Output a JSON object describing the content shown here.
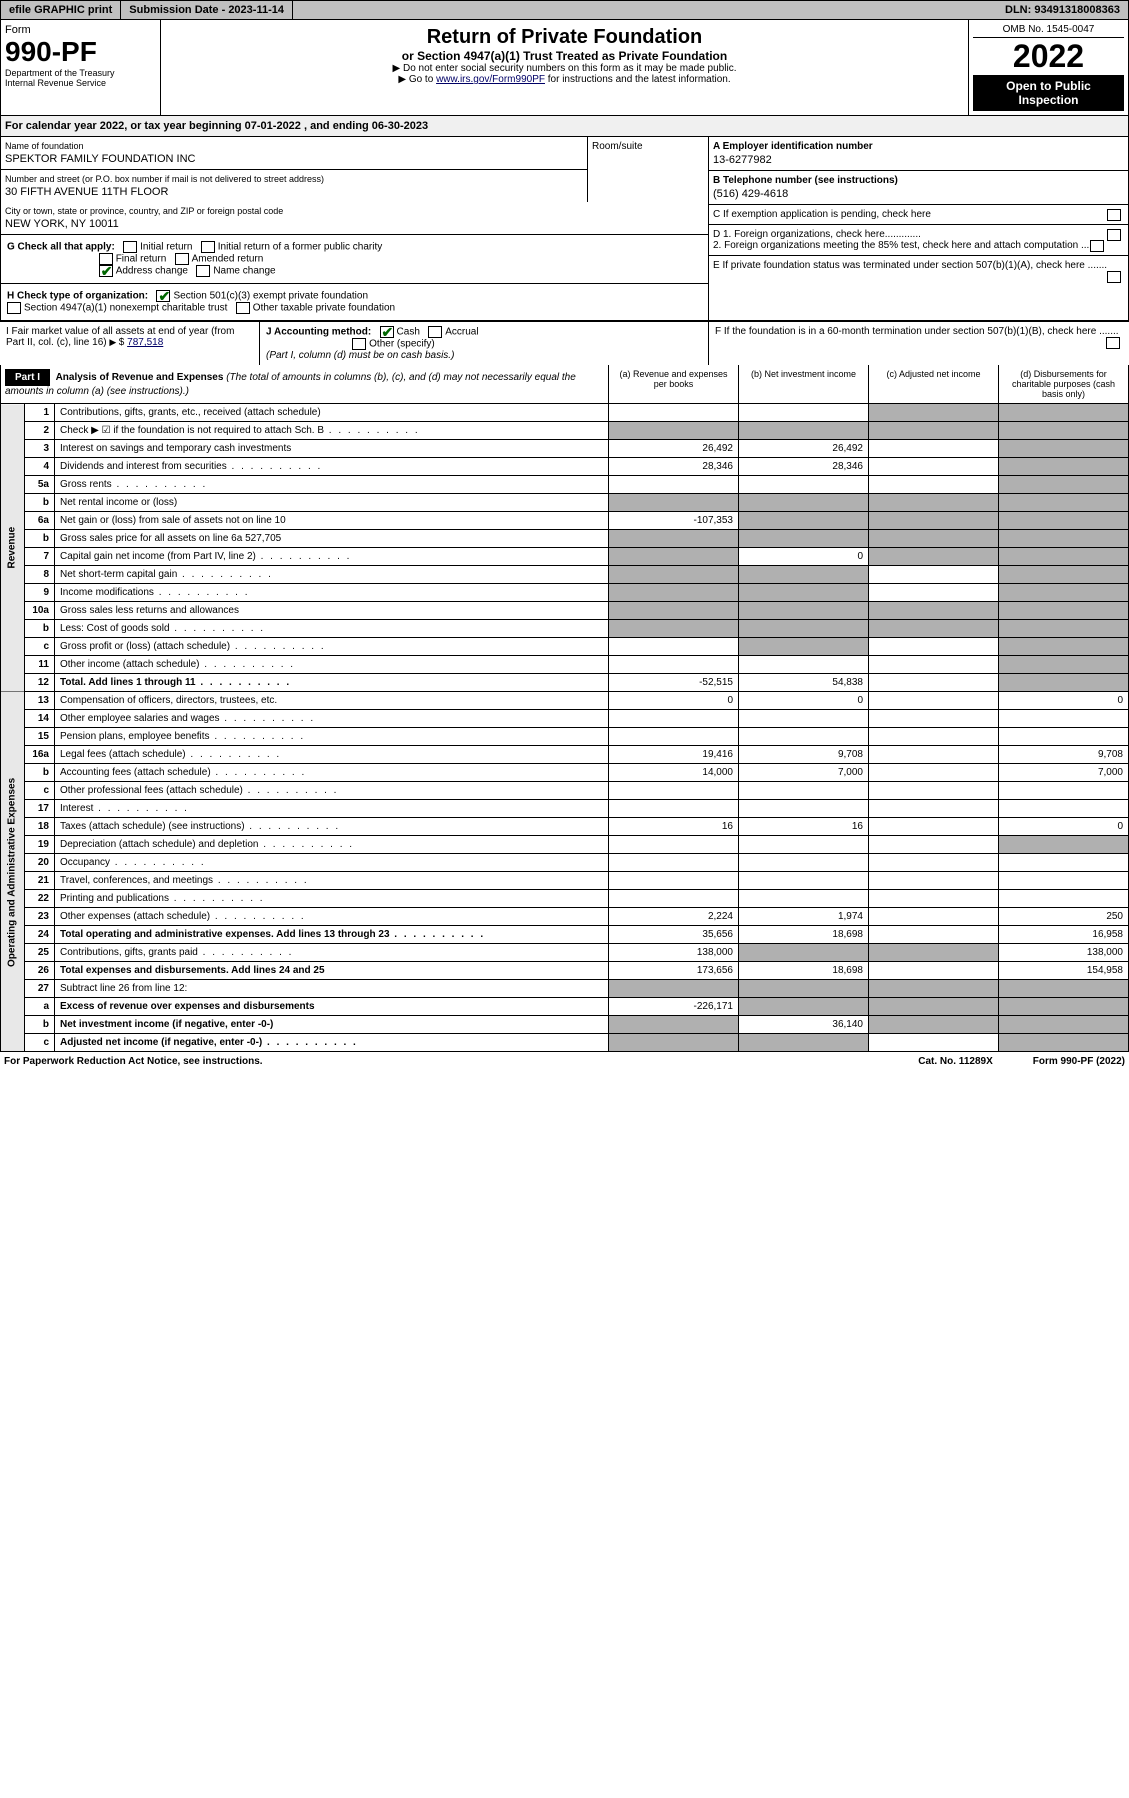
{
  "topbar": {
    "efile": "efile GRAPHIC print",
    "submission": "Submission Date - 2023-11-14",
    "dln": "DLN: 93491318008363"
  },
  "header": {
    "form_label": "Form",
    "form_num": "990-PF",
    "dept1": "Department of the Treasury",
    "dept2": "Internal Revenue Service",
    "title": "Return of Private Foundation",
    "subtitle": "or Section 4947(a)(1) Trust Treated as Private Foundation",
    "note1": "▶ Do not enter social security numbers on this form as it may be made public.",
    "note2_pre": "▶ Go to ",
    "note2_link": "www.irs.gov/Form990PF",
    "note2_post": " for instructions and the latest information.",
    "omb": "OMB No. 1545-0047",
    "year": "2022",
    "open": "Open to Public Inspection"
  },
  "calyear": "For calendar year 2022, or tax year beginning 07-01-2022            , and ending 06-30-2023",
  "ident": {
    "name_lbl": "Name of foundation",
    "name": "SPEKTOR FAMILY FOUNDATION INC",
    "addr_lbl": "Number and street (or P.O. box number if mail is not delivered to street address)",
    "addr": "30 FIFTH AVENUE 11TH FLOOR",
    "room_lbl": "Room/suite",
    "city_lbl": "City or town, state or province, country, and ZIP or foreign postal code",
    "city": "NEW YORK, NY  10011",
    "a_lbl": "A Employer identification number",
    "a_val": "13-6277982",
    "b_lbl": "B Telephone number (see instructions)",
    "b_val": "(516) 429-4618",
    "c_lbl": "C If exemption application is pending, check here",
    "d1": "D 1. Foreign organizations, check here.............",
    "d2": "2. Foreign organizations meeting the 85% test, check here and attach computation ...",
    "e": "E  If private foundation status was terminated under section 507(b)(1)(A), check here .......",
    "f": "F  If the foundation is in a 60-month termination under section 507(b)(1)(B), check here .......",
    "g_lbl": "G Check all that apply:",
    "g_opts": [
      "Initial return",
      "Initial return of a former public charity",
      "Final return",
      "Amended return",
      "Address change",
      "Name change"
    ],
    "h_lbl": "H Check type of organization:",
    "h_opts": [
      "Section 501(c)(3) exempt private foundation",
      "Section 4947(a)(1) nonexempt charitable trust",
      "Other taxable private foundation"
    ],
    "i_lbl": "I Fair market value of all assets at end of year (from Part II, col. (c), line 16)",
    "i_val": "787,518",
    "j_lbl": "J Accounting method:",
    "j_opts": [
      "Cash",
      "Accrual",
      "Other (specify)"
    ],
    "j_note": "(Part I, column (d) must be on cash basis.)"
  },
  "part1": {
    "label": "Part I",
    "title": "Analysis of Revenue and Expenses",
    "title_note": "(The total of amounts in columns (b), (c), and (d) may not necessarily equal the amounts in column (a) (see instructions).)",
    "cols": [
      "(a)   Revenue and expenses per books",
      "(b)   Net investment income",
      "(c)  Adjusted net income",
      "(d)  Disbursements for charitable purposes (cash basis only)"
    ]
  },
  "sections": {
    "rev": "Revenue",
    "oae": "Operating and Administrative Expenses"
  },
  "rows": [
    {
      "n": "1",
      "d": "Contributions, gifts, grants, etc., received (attach schedule)",
      "a": "",
      "b": "",
      "c": "s",
      "dd": "s"
    },
    {
      "n": "2",
      "d": "Check ▶ ☑ if the foundation is not required to attach Sch. B",
      "a": "s",
      "b": "s",
      "c": "s",
      "dd": "s",
      "dots": 1
    },
    {
      "n": "3",
      "d": "Interest on savings and temporary cash investments",
      "a": "26,492",
      "b": "26,492",
      "c": "",
      "dd": "s"
    },
    {
      "n": "4",
      "d": "Dividends and interest from securities",
      "a": "28,346",
      "b": "28,346",
      "c": "",
      "dd": "s",
      "dots": 1
    },
    {
      "n": "5a",
      "d": "Gross rents",
      "a": "",
      "b": "",
      "c": "",
      "dd": "s",
      "dots": 1
    },
    {
      "n": "b",
      "d": "Net rental income or (loss)",
      "a": "s",
      "b": "s",
      "c": "s",
      "dd": "s"
    },
    {
      "n": "6a",
      "d": "Net gain or (loss) from sale of assets not on line 10",
      "a": "-107,353",
      "b": "s",
      "c": "s",
      "dd": "s"
    },
    {
      "n": "b",
      "d": "Gross sales price for all assets on line 6a              527,705",
      "a": "s",
      "b": "s",
      "c": "s",
      "dd": "s"
    },
    {
      "n": "7",
      "d": "Capital gain net income (from Part IV, line 2)",
      "a": "s",
      "b": "0",
      "c": "s",
      "dd": "s",
      "dots": 1
    },
    {
      "n": "8",
      "d": "Net short-term capital gain",
      "a": "s",
      "b": "s",
      "c": "",
      "dd": "s",
      "dots": 1
    },
    {
      "n": "9",
      "d": "Income modifications",
      "a": "s",
      "b": "s",
      "c": "",
      "dd": "s",
      "dots": 1
    },
    {
      "n": "10a",
      "d": "Gross sales less returns and allowances",
      "a": "s",
      "b": "s",
      "c": "s",
      "dd": "s"
    },
    {
      "n": "b",
      "d": "Less: Cost of goods sold",
      "a": "s",
      "b": "s",
      "c": "s",
      "dd": "s",
      "dots": 1
    },
    {
      "n": "c",
      "d": "Gross profit or (loss) (attach schedule)",
      "a": "",
      "b": "s",
      "c": "",
      "dd": "s",
      "dots": 1
    },
    {
      "n": "11",
      "d": "Other income (attach schedule)",
      "a": "",
      "b": "",
      "c": "",
      "dd": "s",
      "dots": 1
    },
    {
      "n": "12",
      "d": "Total. Add lines 1 through 11",
      "a": "-52,515",
      "b": "54,838",
      "c": "",
      "dd": "s",
      "bold": 1,
      "dots": 1
    },
    {
      "n": "13",
      "d": "Compensation of officers, directors, trustees, etc.",
      "a": "0",
      "b": "0",
      "c": "",
      "dd": "0"
    },
    {
      "n": "14",
      "d": "Other employee salaries and wages",
      "a": "",
      "b": "",
      "c": "",
      "dd": "",
      "dots": 1
    },
    {
      "n": "15",
      "d": "Pension plans, employee benefits",
      "a": "",
      "b": "",
      "c": "",
      "dd": "",
      "dots": 1
    },
    {
      "n": "16a",
      "d": "Legal fees (attach schedule)",
      "a": "19,416",
      "b": "9,708",
      "c": "",
      "dd": "9,708",
      "dots": 1
    },
    {
      "n": "b",
      "d": "Accounting fees (attach schedule)",
      "a": "14,000",
      "b": "7,000",
      "c": "",
      "dd": "7,000",
      "dots": 1
    },
    {
      "n": "c",
      "d": "Other professional fees (attach schedule)",
      "a": "",
      "b": "",
      "c": "",
      "dd": "",
      "dots": 1
    },
    {
      "n": "17",
      "d": "Interest",
      "a": "",
      "b": "",
      "c": "",
      "dd": "",
      "dots": 1
    },
    {
      "n": "18",
      "d": "Taxes (attach schedule) (see instructions)",
      "a": "16",
      "b": "16",
      "c": "",
      "dd": "0",
      "dots": 1
    },
    {
      "n": "19",
      "d": "Depreciation (attach schedule) and depletion",
      "a": "",
      "b": "",
      "c": "",
      "dd": "s",
      "dots": 1
    },
    {
      "n": "20",
      "d": "Occupancy",
      "a": "",
      "b": "",
      "c": "",
      "dd": "",
      "dots": 1
    },
    {
      "n": "21",
      "d": "Travel, conferences, and meetings",
      "a": "",
      "b": "",
      "c": "",
      "dd": "",
      "dots": 1
    },
    {
      "n": "22",
      "d": "Printing and publications",
      "a": "",
      "b": "",
      "c": "",
      "dd": "",
      "dots": 1
    },
    {
      "n": "23",
      "d": "Other expenses (attach schedule)",
      "a": "2,224",
      "b": "1,974",
      "c": "",
      "dd": "250",
      "dots": 1
    },
    {
      "n": "24",
      "d": "Total operating and administrative expenses. Add lines 13 through 23",
      "a": "35,656",
      "b": "18,698",
      "c": "",
      "dd": "16,958",
      "bold": 1,
      "dots": 1
    },
    {
      "n": "25",
      "d": "Contributions, gifts, grants paid",
      "a": "138,000",
      "b": "s",
      "c": "s",
      "dd": "138,000",
      "dots": 1
    },
    {
      "n": "26",
      "d": "Total expenses and disbursements. Add lines 24 and 25",
      "a": "173,656",
      "b": "18,698",
      "c": "",
      "dd": "154,958",
      "bold": 1
    },
    {
      "n": "27",
      "d": "Subtract line 26 from line 12:",
      "a": "s",
      "b": "s",
      "c": "s",
      "dd": "s"
    },
    {
      "n": "a",
      "d": "Excess of revenue over expenses and disbursements",
      "a": "-226,171",
      "b": "s",
      "c": "s",
      "dd": "s",
      "bold": 1
    },
    {
      "n": "b",
      "d": "Net investment income (if negative, enter -0-)",
      "a": "s",
      "b": "36,140",
      "c": "s",
      "dd": "s",
      "bold": 1
    },
    {
      "n": "c",
      "d": "Adjusted net income (if negative, enter -0-)",
      "a": "s",
      "b": "s",
      "c": "",
      "dd": "s",
      "bold": 1,
      "dots": 1
    }
  ],
  "footer": {
    "left": "For Paperwork Reduction Act Notice, see instructions.",
    "mid": "Cat. No. 11289X",
    "right": "Form 990-PF (2022)"
  }
}
